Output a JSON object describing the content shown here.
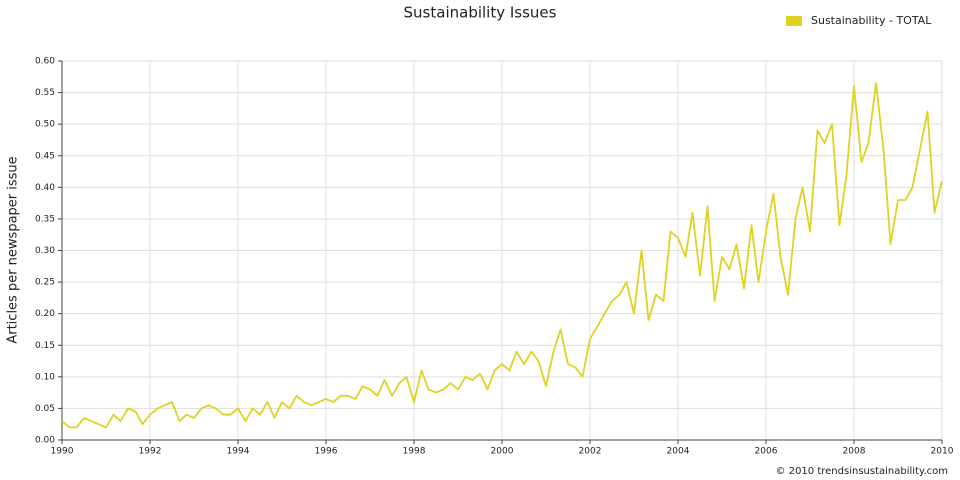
{
  "chart_data": {
    "type": "line",
    "title": "Sustainability Issues",
    "y_label": "Articles per newspaper issue",
    "footnote": "© 2010 trendsinsustainability.com",
    "legend_position": "top-right",
    "grid": true,
    "xlim": [
      1990,
      2010
    ],
    "xticks": [
      1990,
      1992,
      1994,
      1996,
      1998,
      2000,
      2002,
      2004,
      2006,
      2008,
      2010
    ],
    "ylim": [
      0,
      0.6
    ],
    "yticks": [
      {
        "value": 0,
        "label": "0.00"
      },
      {
        "value": 0.05,
        "label": "0.05"
      },
      {
        "value": 0.1,
        "label": "0.10"
      },
      {
        "value": 0.15,
        "label": "0.15"
      },
      {
        "value": 0.2,
        "label": "0.20"
      },
      {
        "value": 0.25,
        "label": "0.25"
      },
      {
        "value": 0.3,
        "label": "0.30"
      },
      {
        "value": 0.35,
        "label": "0.35"
      },
      {
        "value": 0.4,
        "label": "0.40"
      },
      {
        "value": 0.45,
        "label": "0.45"
      },
      {
        "value": 0.5,
        "label": "0.50"
      },
      {
        "value": 0.55,
        "label": "0.55"
      },
      {
        "value": 0.6,
        "label": "0.60"
      }
    ],
    "x": [
      1990,
      1990.17,
      1990.33,
      1990.5,
      1990.67,
      1990.83,
      1991,
      1991.17,
      1991.33,
      1991.5,
      1991.67,
      1991.83,
      1992,
      1992.17,
      1992.33,
      1992.5,
      1992.67,
      1992.83,
      1993,
      1993.17,
      1993.33,
      1993.5,
      1993.67,
      1993.83,
      1994,
      1994.17,
      1994.33,
      1994.5,
      1994.67,
      1994.83,
      1995,
      1995.17,
      1995.33,
      1995.5,
      1995.67,
      1995.83,
      1996,
      1996.17,
      1996.33,
      1996.5,
      1996.67,
      1996.83,
      1997,
      1997.17,
      1997.33,
      1997.5,
      1997.67,
      1997.83,
      1998,
      1998.17,
      1998.33,
      1998.5,
      1998.67,
      1998.83,
      1999,
      1999.17,
      1999.33,
      1999.5,
      1999.67,
      1999.83,
      2000,
      2000.17,
      2000.33,
      2000.5,
      2000.67,
      2000.83,
      2001,
      2001.17,
      2001.33,
      2001.5,
      2001.67,
      2001.83,
      2002,
      2002.17,
      2002.33,
      2002.5,
      2002.67,
      2002.83,
      2003,
      2003.17,
      2003.33,
      2003.5,
      2003.67,
      2003.83,
      2004,
      2004.17,
      2004.33,
      2004.5,
      2004.67,
      2004.83,
      2005,
      2005.17,
      2005.33,
      2005.5,
      2005.67,
      2005.83,
      2006,
      2006.17,
      2006.33,
      2006.5,
      2006.67,
      2006.83,
      2007,
      2007.17,
      2007.33,
      2007.5,
      2007.67,
      2007.83,
      2008,
      2008.17,
      2008.33,
      2008.5,
      2008.67,
      2008.83,
      2009,
      2009.17,
      2009.33,
      2009.5,
      2009.67,
      2009.83,
      2010
    ],
    "series": [
      {
        "name": "Sustainability - TOTAL",
        "color": "#e0d222",
        "values": [
          0.03,
          0.02,
          0.02,
          0.035,
          0.03,
          0.025,
          0.02,
          0.04,
          0.03,
          0.05,
          0.045,
          0.025,
          0.04,
          0.05,
          0.055,
          0.06,
          0.03,
          0.04,
          0.035,
          0.05,
          0.055,
          0.05,
          0.04,
          0.04,
          0.05,
          0.03,
          0.05,
          0.04,
          0.06,
          0.035,
          0.06,
          0.05,
          0.07,
          0.06,
          0.055,
          0.06,
          0.065,
          0.06,
          0.07,
          0.07,
          0.065,
          0.085,
          0.08,
          0.07,
          0.095,
          0.07,
          0.09,
          0.1,
          0.06,
          0.11,
          0.08,
          0.075,
          0.08,
          0.09,
          0.08,
          0.1,
          0.095,
          0.105,
          0.08,
          0.11,
          0.12,
          0.11,
          0.14,
          0.12,
          0.14,
          0.125,
          0.085,
          0.14,
          0.175,
          0.12,
          0.115,
          0.1,
          0.16,
          0.18,
          0.2,
          0.22,
          0.23,
          0.25,
          0.2,
          0.3,
          0.19,
          0.23,
          0.22,
          0.33,
          0.32,
          0.29,
          0.36,
          0.26,
          0.37,
          0.22,
          0.29,
          0.27,
          0.31,
          0.24,
          0.34,
          0.25,
          0.33,
          0.39,
          0.29,
          0.23,
          0.35,
          0.4,
          0.33,
          0.49,
          0.47,
          0.5,
          0.34,
          0.42,
          0.56,
          0.44,
          0.47,
          0.565,
          0.46,
          0.31,
          0.38,
          0.38,
          0.4,
          0.46,
          0.52,
          0.36,
          0.41
        ]
      }
    ]
  }
}
